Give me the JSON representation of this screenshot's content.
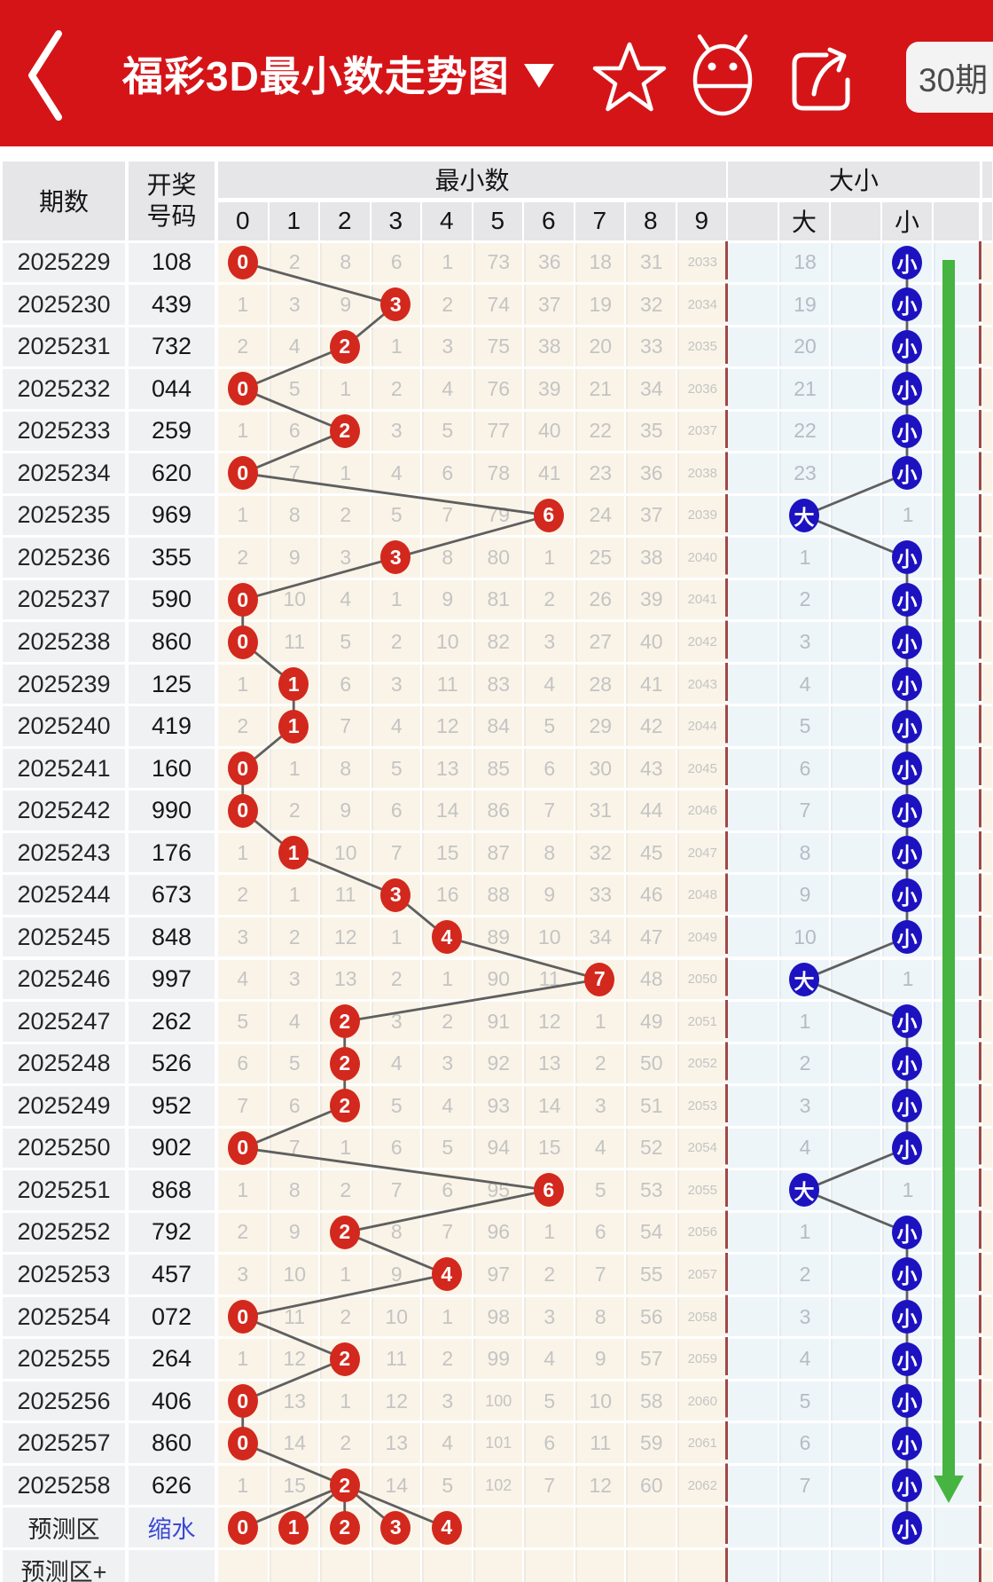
{
  "header": {
    "title": "福彩3D最小数走势图",
    "period_button": "30期",
    "icons": {
      "back": "chevron-left",
      "dropdown": "triangle-down",
      "favorite": "star-outline",
      "app": "android-robot",
      "share": "share-arrow"
    }
  },
  "table": {
    "headers": {
      "period": "期数",
      "draw_number_line1": "开奖",
      "draw_number_line2": "号码",
      "min_group": "最小数",
      "digits": [
        "0",
        "1",
        "2",
        "3",
        "4",
        "5",
        "6",
        "7",
        "8",
        "9"
      ],
      "size_group": "大小",
      "big": "大",
      "small": "小"
    },
    "rows": [
      {
        "period": "2025229",
        "number": "108",
        "min": 0,
        "miss": [
          "",
          "2",
          "8",
          "6",
          "1",
          "73",
          "36",
          "18",
          "31",
          "2033"
        ],
        "big": "18",
        "small": "hit"
      },
      {
        "period": "2025230",
        "number": "439",
        "min": 3,
        "miss": [
          "1",
          "3",
          "9",
          "",
          "2",
          "74",
          "37",
          "19",
          "32",
          "2034"
        ],
        "big": "19",
        "small": "hit"
      },
      {
        "period": "2025231",
        "number": "732",
        "min": 2,
        "miss": [
          "2",
          "4",
          "",
          "1",
          "3",
          "75",
          "38",
          "20",
          "33",
          "2035"
        ],
        "big": "20",
        "small": "hit"
      },
      {
        "period": "2025232",
        "number": "044",
        "min": 0,
        "miss": [
          "",
          "5",
          "1",
          "2",
          "4",
          "76",
          "39",
          "21",
          "34",
          "2036"
        ],
        "big": "21",
        "small": "hit"
      },
      {
        "period": "2025233",
        "number": "259",
        "min": 2,
        "miss": [
          "1",
          "6",
          "",
          "3",
          "5",
          "77",
          "40",
          "22",
          "35",
          "2037"
        ],
        "big": "22",
        "small": "hit"
      },
      {
        "period": "2025234",
        "number": "620",
        "min": 0,
        "miss": [
          "",
          "7",
          "1",
          "4",
          "6",
          "78",
          "41",
          "23",
          "36",
          "2038"
        ],
        "big": "23",
        "small": "hit"
      },
      {
        "period": "2025235",
        "number": "969",
        "min": 6,
        "miss": [
          "1",
          "8",
          "2",
          "5",
          "7",
          "79",
          "",
          "24",
          "37",
          "2039"
        ],
        "big": "hit",
        "small": "1"
      },
      {
        "period": "2025236",
        "number": "355",
        "min": 3,
        "miss": [
          "2",
          "9",
          "3",
          "",
          "8",
          "80",
          "1",
          "25",
          "38",
          "2040"
        ],
        "big": "1",
        "small": "hit"
      },
      {
        "period": "2025237",
        "number": "590",
        "min": 0,
        "miss": [
          "",
          "10",
          "4",
          "1",
          "9",
          "81",
          "2",
          "26",
          "39",
          "2041"
        ],
        "big": "2",
        "small": "hit"
      },
      {
        "period": "2025238",
        "number": "860",
        "min": 0,
        "miss": [
          "",
          "11",
          "5",
          "2",
          "10",
          "82",
          "3",
          "27",
          "40",
          "2042"
        ],
        "big": "3",
        "small": "hit"
      },
      {
        "period": "2025239",
        "number": "125",
        "min": 1,
        "miss": [
          "1",
          "",
          "6",
          "3",
          "11",
          "83",
          "4",
          "28",
          "41",
          "2043"
        ],
        "big": "4",
        "small": "hit"
      },
      {
        "period": "2025240",
        "number": "419",
        "min": 1,
        "miss": [
          "2",
          "",
          "7",
          "4",
          "12",
          "84",
          "5",
          "29",
          "42",
          "2044"
        ],
        "big": "5",
        "small": "hit"
      },
      {
        "period": "2025241",
        "number": "160",
        "min": 0,
        "miss": [
          "",
          "1",
          "8",
          "5",
          "13",
          "85",
          "6",
          "30",
          "43",
          "2045"
        ],
        "big": "6",
        "small": "hit"
      },
      {
        "period": "2025242",
        "number": "990",
        "min": 0,
        "miss": [
          "",
          "2",
          "9",
          "6",
          "14",
          "86",
          "7",
          "31",
          "44",
          "2046"
        ],
        "big": "7",
        "small": "hit"
      },
      {
        "period": "2025243",
        "number": "176",
        "min": 1,
        "miss": [
          "1",
          "",
          "10",
          "7",
          "15",
          "87",
          "8",
          "32",
          "45",
          "2047"
        ],
        "big": "8",
        "small": "hit"
      },
      {
        "period": "2025244",
        "number": "673",
        "min": 3,
        "miss": [
          "2",
          "1",
          "11",
          "",
          "16",
          "88",
          "9",
          "33",
          "46",
          "2048"
        ],
        "big": "9",
        "small": "hit"
      },
      {
        "period": "2025245",
        "number": "848",
        "min": 4,
        "miss": [
          "3",
          "2",
          "12",
          "1",
          "",
          "89",
          "10",
          "34",
          "47",
          "2049"
        ],
        "big": "10",
        "small": "hit"
      },
      {
        "period": "2025246",
        "number": "997",
        "min": 7,
        "miss": [
          "4",
          "3",
          "13",
          "2",
          "1",
          "90",
          "11",
          "",
          "48",
          "2050"
        ],
        "big": "hit",
        "small": "1"
      },
      {
        "period": "2025247",
        "number": "262",
        "min": 2,
        "miss": [
          "5",
          "4",
          "",
          "3",
          "2",
          "91",
          "12",
          "1",
          "49",
          "2051"
        ],
        "big": "1",
        "small": "hit"
      },
      {
        "period": "2025248",
        "number": "526",
        "min": 2,
        "miss": [
          "6",
          "5",
          "",
          "4",
          "3",
          "92",
          "13",
          "2",
          "50",
          "2052"
        ],
        "big": "2",
        "small": "hit"
      },
      {
        "period": "2025249",
        "number": "952",
        "min": 2,
        "miss": [
          "7",
          "6",
          "",
          "5",
          "4",
          "93",
          "14",
          "3",
          "51",
          "2053"
        ],
        "big": "3",
        "small": "hit"
      },
      {
        "period": "2025250",
        "number": "902",
        "min": 0,
        "miss": [
          "",
          "7",
          "1",
          "6",
          "5",
          "94",
          "15",
          "4",
          "52",
          "2054"
        ],
        "big": "4",
        "small": "hit"
      },
      {
        "period": "2025251",
        "number": "868",
        "min": 6,
        "miss": [
          "1",
          "8",
          "2",
          "7",
          "6",
          "95",
          "",
          "5",
          "53",
          "2055"
        ],
        "big": "hit",
        "small": "1"
      },
      {
        "period": "2025252",
        "number": "792",
        "min": 2,
        "miss": [
          "2",
          "9",
          "",
          "8",
          "7",
          "96",
          "1",
          "6",
          "54",
          "2056"
        ],
        "big": "1",
        "small": "hit"
      },
      {
        "period": "2025253",
        "number": "457",
        "min": 4,
        "miss": [
          "3",
          "10",
          "1",
          "9",
          "",
          "97",
          "2",
          "7",
          "55",
          "2057"
        ],
        "big": "2",
        "small": "hit"
      },
      {
        "period": "2025254",
        "number": "072",
        "min": 0,
        "miss": [
          "",
          "11",
          "2",
          "10",
          "1",
          "98",
          "3",
          "8",
          "56",
          "2058"
        ],
        "big": "3",
        "small": "hit"
      },
      {
        "period": "2025255",
        "number": "264",
        "min": 2,
        "miss": [
          "1",
          "12",
          "",
          "11",
          "2",
          "99",
          "4",
          "9",
          "57",
          "2059"
        ],
        "big": "4",
        "small": "hit"
      },
      {
        "period": "2025256",
        "number": "406",
        "min": 0,
        "miss": [
          "",
          "13",
          "1",
          "12",
          "3",
          "100",
          "5",
          "10",
          "58",
          "2060"
        ],
        "big": "5",
        "small": "hit"
      },
      {
        "period": "2025257",
        "number": "860",
        "min": 0,
        "miss": [
          "",
          "14",
          "2",
          "13",
          "4",
          "101",
          "6",
          "11",
          "59",
          "2061"
        ],
        "big": "6",
        "small": "hit"
      },
      {
        "period": "2025258",
        "number": "626",
        "min": 2,
        "miss": [
          "1",
          "15",
          "",
          "14",
          "5",
          "102",
          "7",
          "12",
          "60",
          "2062"
        ],
        "big": "7",
        "small": "hit"
      }
    ],
    "prediction_row": {
      "period": "预测区",
      "link": "缩水",
      "circles": [
        "0",
        "1",
        "2",
        "3",
        "4"
      ],
      "big": "",
      "small": "hit"
    },
    "extra_row": {
      "period": "预测区+"
    },
    "trend_arrow": {
      "direction": "down"
    }
  },
  "colors": {
    "header_bg": "#d51418",
    "hit_red": "#d3281d",
    "hit_blue": "#1d12c0",
    "arrow_green": "#46b440",
    "link_blue": "#3a49d6",
    "miss_text": "#c4c4c4",
    "cream_bg": "#faf4e8",
    "bluish_bg": "#eef5f9",
    "gray_bg": "#f0f1f3",
    "header_cell_bg": "#e6e6e8",
    "divider_red": "#a04747"
  }
}
